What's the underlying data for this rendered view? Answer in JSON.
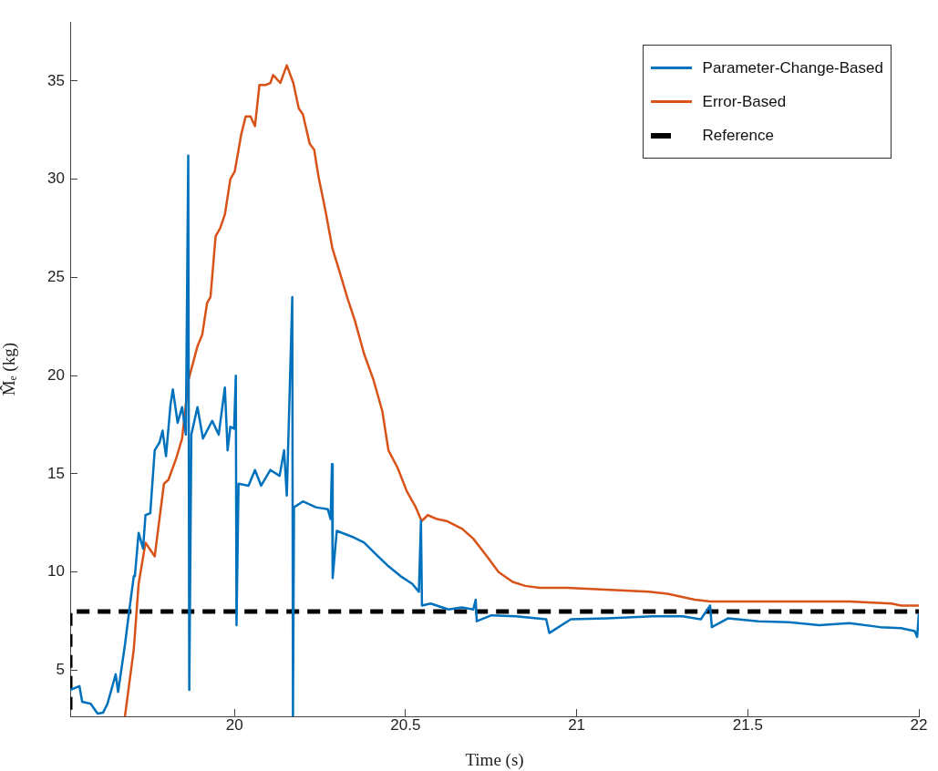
{
  "chart_data": {
    "type": "line",
    "xlabel": "Time (s)",
    "ylabel": "M̂ₑ (kg)",
    "xlim": [
      19.52,
      22
    ],
    "xticks": [
      20,
      20.5,
      21,
      21.5,
      22
    ],
    "ylim": [
      2.66,
      38
    ],
    "yticks": [
      5,
      10,
      15,
      20,
      25,
      30,
      35
    ],
    "grid": false,
    "legend": "top right",
    "marker": "none",
    "series": [
      {
        "name": "Parameter-Change-Based",
        "color": "#0072bd",
        "line_style": "solid",
        "x": [
          19.52,
          19.547,
          19.555,
          19.58,
          19.6,
          19.616,
          19.629,
          19.653,
          19.66,
          19.68,
          19.693,
          19.706,
          19.709,
          19.72,
          19.733,
          19.74,
          19.754,
          19.767,
          19.781,
          19.79,
          19.8,
          19.813,
          19.82,
          19.834,
          19.847,
          19.858,
          19.865,
          19.868,
          19.874,
          19.892,
          19.908,
          19.935,
          19.954,
          19.972,
          19.98,
          19.988,
          19.999,
          20.004,
          20.006,
          20.012,
          20.041,
          20.06,
          20.078,
          20.105,
          20.132,
          20.145,
          20.153,
          20.169,
          20.171,
          20.174,
          20.2,
          20.238,
          20.273,
          20.281,
          20.285,
          20.287,
          20.299,
          20.344,
          20.379,
          20.414,
          20.45,
          20.485,
          20.52,
          20.539,
          20.545,
          20.548,
          20.573,
          20.626,
          20.664,
          20.698,
          20.705,
          20.708,
          20.751,
          20.823,
          20.911,
          20.92,
          20.983,
          21.089,
          21.222,
          21.31,
          21.363,
          21.39,
          21.395,
          21.443,
          21.531,
          21.621,
          21.709,
          21.797,
          21.887,
          21.948,
          21.988,
          21.995,
          22.0
        ],
        "values": [
          4.0,
          4.2,
          3.4,
          3.3,
          2.8,
          2.85,
          3.3,
          4.8,
          3.9,
          6.3,
          8.1,
          9.8,
          9.8,
          12.0,
          11.2,
          12.9,
          13.0,
          16.2,
          16.6,
          17.2,
          15.9,
          18.5,
          19.3,
          17.6,
          18.4,
          17.0,
          31.2,
          4.0,
          17.0,
          18.4,
          16.8,
          17.7,
          17.0,
          19.4,
          16.2,
          17.4,
          17.3,
          20.0,
          7.3,
          14.5,
          14.4,
          15.2,
          14.4,
          15.2,
          14.9,
          16.2,
          13.9,
          24.0,
          2.66,
          13.3,
          13.6,
          13.3,
          13.2,
          12.7,
          15.5,
          9.7,
          12.1,
          11.8,
          11.5,
          10.9,
          10.3,
          9.8,
          9.4,
          9.0,
          12.6,
          8.3,
          8.4,
          8.1,
          8.2,
          8.1,
          8.6,
          7.5,
          7.8,
          7.75,
          7.6,
          6.9,
          7.6,
          7.65,
          7.75,
          7.75,
          7.6,
          8.3,
          7.2,
          7.65,
          7.5,
          7.45,
          7.3,
          7.4,
          7.2,
          7.15,
          7.0,
          6.7,
          7.9
        ]
      },
      {
        "name": "Error-Based",
        "color": "#d95319",
        "line_style": "solid",
        "x": [
          19.68,
          19.706,
          19.72,
          19.74,
          19.767,
          19.794,
          19.807,
          19.83,
          19.847,
          19.866,
          19.892,
          19.906,
          19.92,
          19.93,
          19.945,
          19.958,
          19.972,
          19.988,
          20.001,
          20.02,
          20.033,
          20.047,
          20.06,
          20.073,
          20.092,
          20.105,
          20.113,
          20.134,
          20.153,
          20.172,
          20.188,
          20.2,
          20.22,
          20.233,
          20.246,
          20.267,
          20.286,
          20.307,
          20.331,
          20.352,
          20.379,
          20.406,
          20.432,
          20.45,
          20.477,
          20.504,
          20.53,
          20.547,
          20.565,
          20.592,
          20.62,
          20.666,
          20.698,
          20.738,
          20.772,
          20.813,
          20.85,
          20.892,
          20.972,
          21.211,
          21.265,
          21.345,
          21.39,
          21.53,
          21.797,
          21.92,
          21.948,
          22.0
        ],
        "values": [
          2.66,
          6.1,
          9.4,
          11.5,
          10.8,
          14.5,
          14.7,
          15.8,
          16.8,
          19.8,
          21.5,
          22.1,
          23.7,
          24.0,
          27.1,
          27.5,
          28.2,
          30.0,
          30.4,
          32.3,
          33.2,
          33.2,
          32.7,
          34.8,
          34.8,
          34.9,
          35.3,
          34.9,
          35.8,
          34.9,
          33.6,
          33.3,
          31.8,
          31.5,
          30.1,
          28.3,
          26.5,
          25.3,
          23.9,
          22.8,
          21.1,
          19.8,
          18.2,
          16.2,
          15.3,
          14.1,
          13.3,
          12.6,
          12.9,
          12.7,
          12.6,
          12.2,
          11.7,
          10.8,
          10.0,
          9.5,
          9.3,
          9.2,
          9.2,
          9.0,
          8.9,
          8.6,
          8.5,
          8.5,
          8.5,
          8.4,
          8.3,
          8.3
        ]
      },
      {
        "name": "Reference",
        "type": "step",
        "color": "#000000",
        "line_style": "dashed",
        "x": [
          19.52,
          19.595,
          22
        ],
        "values": [
          3,
          8,
          8
        ]
      }
    ]
  }
}
